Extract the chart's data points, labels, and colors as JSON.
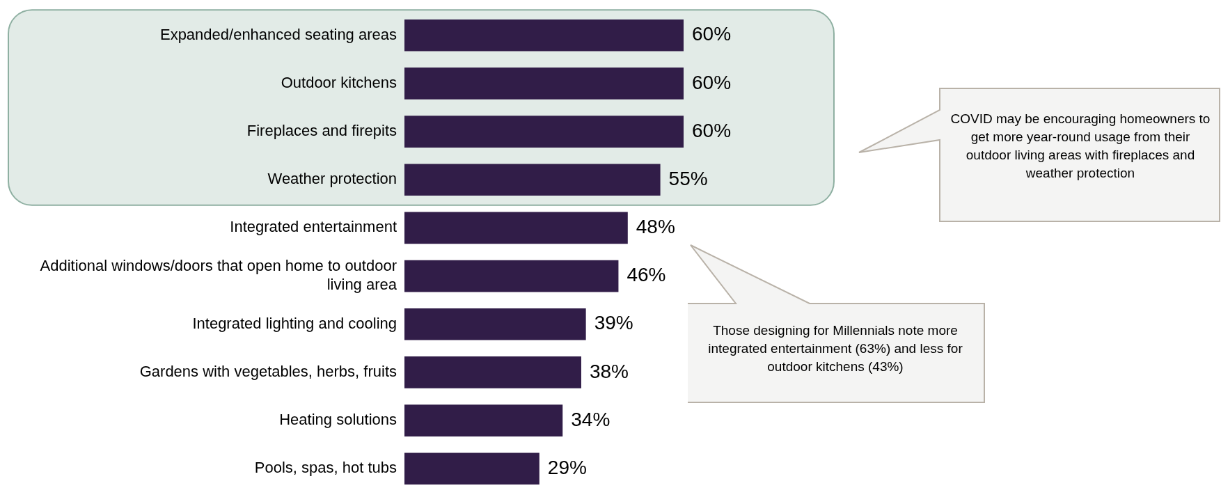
{
  "chart_data": {
    "type": "bar",
    "orientation": "horizontal",
    "categories": [
      "Expanded/enhanced seating areas",
      "Outdoor kitchens",
      "Fireplaces and firepits",
      "Weather protection",
      "Integrated entertainment",
      "Additional windows/doors that open home to outdoor living area",
      "Integrated lighting and cooling",
      "Gardens with vegetables, herbs, fruits",
      "Heating solutions",
      "Pools, spas, hot tubs"
    ],
    "values": [
      60,
      60,
      60,
      55,
      48,
      46,
      39,
      38,
      34,
      29
    ],
    "value_labels": [
      "60%",
      "60%",
      "60%",
      "55%",
      "48%",
      "46%",
      "39%",
      "38%",
      "34%",
      "29%"
    ],
    "color": "#311d48",
    "tick_labels": "y",
    "bands": [
      {
        "axis": "y",
        "from": "Expanded/enhanced seating areas",
        "to": "Weather protection",
        "color": "#e2ebe7"
      }
    ],
    "legend": false,
    "annotations": [
      "COVID may be encouraging homeowners to get more year-round usage from their outdoor living areas with fireplaces and weather protection",
      "Those designing for Millennials note more integrated entertainment (63%) and less for outdoor kitchens (43%)"
    ]
  }
}
